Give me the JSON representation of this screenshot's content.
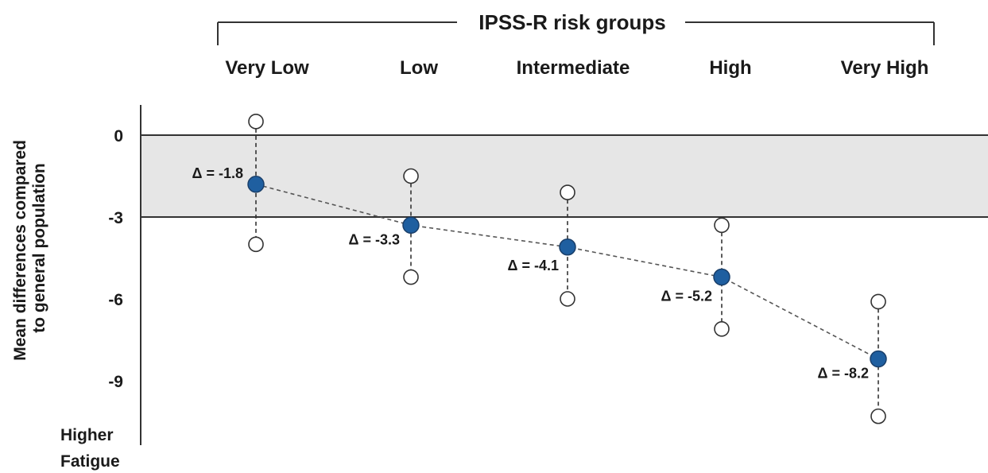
{
  "chart_data": {
    "type": "scatter",
    "title": "IPSS-R risk groups",
    "ylabel_lines": [
      "Mean differences compared",
      "to general population"
    ],
    "y_annotation_lines": [
      "Higher",
      "Fatigue"
    ],
    "categories": [
      "Very Low",
      "Low",
      "Intermediate",
      "High",
      "Very High"
    ],
    "ylim": [
      -10.5,
      1.1
    ],
    "yticks": [
      0,
      -3,
      -6,
      -9
    ],
    "shaded_band": [
      -3,
      0
    ],
    "series": [
      {
        "values": [
          -1.8,
          -3.3,
          -4.1,
          -5.2,
          -8.2
        ]
      }
    ],
    "ci_lower": [
      -4.0,
      -5.2,
      -6.0,
      -7.1,
      -10.3
    ],
    "ci_upper": [
      0.5,
      -1.5,
      -2.1,
      -3.3,
      -6.1
    ],
    "delta_labels": [
      "Δ = -1.8",
      "Δ = -3.3",
      "Δ = -4.1",
      "Δ = -5.2",
      "Δ = -8.2"
    ],
    "colors": {
      "point_fill": "#1f5fa0",
      "band": "#e6e6e6",
      "axis": "#333333"
    }
  }
}
